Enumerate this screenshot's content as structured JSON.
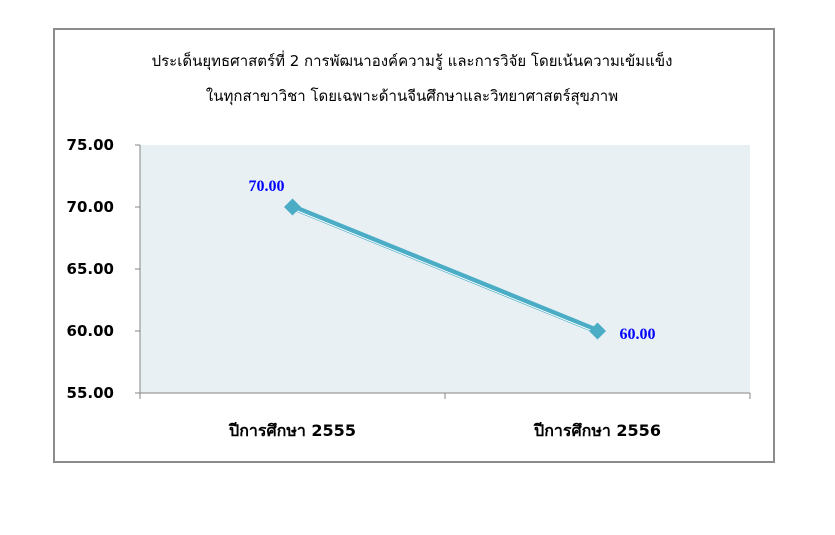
{
  "chart_data": {
    "type": "line",
    "title_lines": [
      "ประเด็นยุทธศาสตร์ที่ 2  การพัฒนาองค์ความรู้ และการวิจัย โดยเน้นความเข้มแข็ง",
      "ในทุกสาขาวิชา โดยเฉพาะด้านจีนศึกษาและวิทยาศาสตร์สุขภาพ"
    ],
    "categories": [
      "ปีการศึกษา 2555",
      "ปีการศึกษา 2556"
    ],
    "values": [
      70.0,
      60.0
    ],
    "data_labels": [
      "70.00",
      "60.00"
    ],
    "ylim": [
      55,
      75
    ],
    "yticks": [
      "55.00",
      "60.00",
      "65.00",
      "70.00",
      "75.00"
    ],
    "grid": false,
    "legend": "none",
    "colors": {
      "line": "#4bacc6",
      "plot_bg": "#e8f0f4",
      "data_label": "#0000ff"
    }
  }
}
